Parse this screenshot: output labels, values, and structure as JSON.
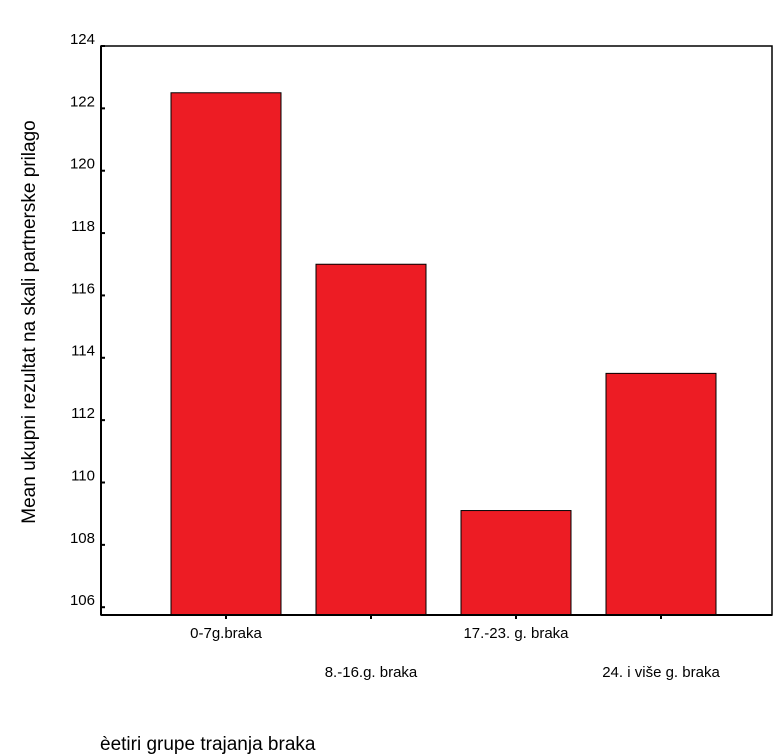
{
  "chart_data": {
    "type": "bar",
    "x_label": "èetiri grupe trajanja braka",
    "y_label": "Mean ukupni rezultat na skali partnerske prilago",
    "categories": [
      "0-7g.braka",
      "8.-16.g. braka",
      "17.-23. g. braka",
      "24. i više g. braka"
    ],
    "values": [
      122.5,
      117.0,
      109.1,
      113.5
    ],
    "color": "#ed1c24",
    "ylim": [
      105.75,
      124
    ],
    "yticks": [
      106,
      108,
      110,
      112,
      114,
      116,
      118,
      120,
      122,
      124
    ],
    "grid": false
  }
}
